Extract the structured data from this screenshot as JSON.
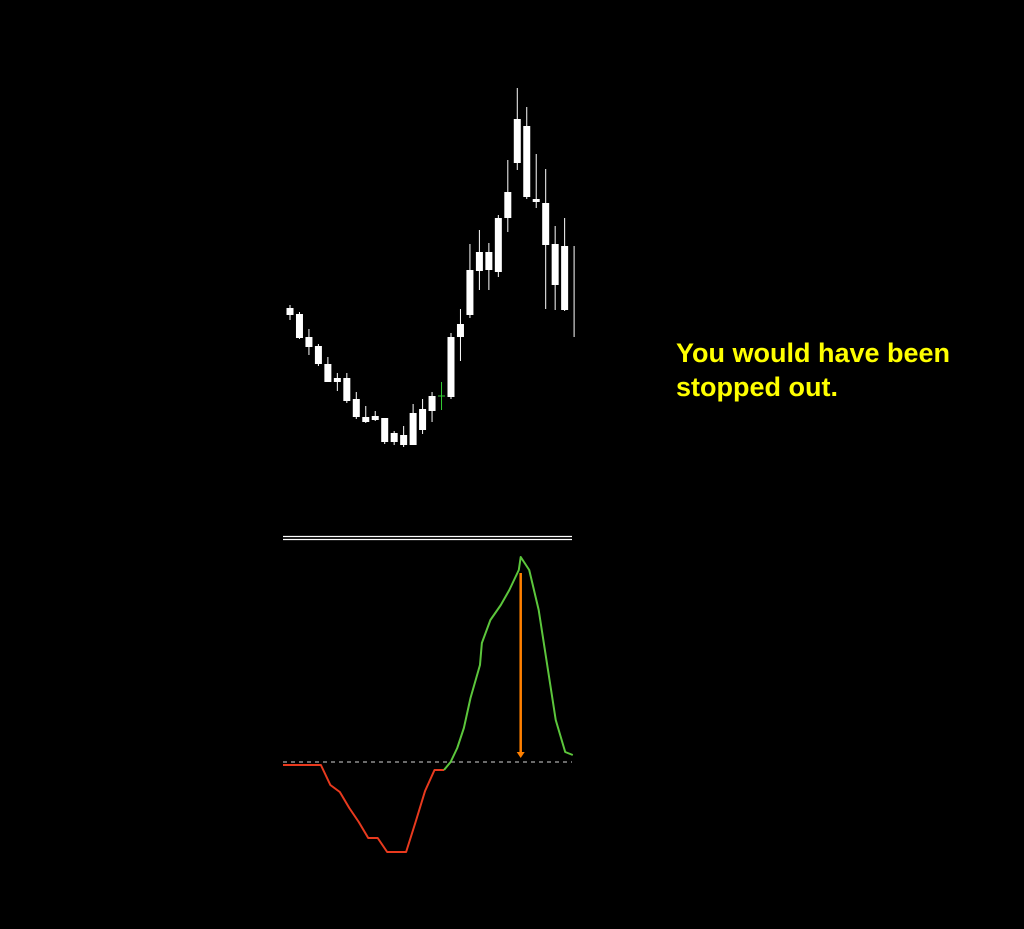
{
  "annotation": {
    "line1": "You would have been",
    "line2": "stopped out."
  },
  "colors": {
    "background": "#000000",
    "candle": "#ffffff",
    "doji": "#33cc33",
    "osc_negative": "#e83a1e",
    "osc_positive": "#5cc63c",
    "arrow": "#ff8000",
    "zero_line": "#aaaaaa",
    "separator": "#ffffff",
    "annotation": "#ffff00"
  },
  "chart_data": [
    {
      "type": "candlestick",
      "title": "",
      "xlabel": "",
      "ylabel": "",
      "grid": false,
      "candles": [
        {
          "high": 695,
          "low": 680,
          "top": 692,
          "bottom": 685
        },
        {
          "high": 688,
          "low": 661,
          "top": 686,
          "bottom": 662
        },
        {
          "high": 671,
          "low": 645,
          "top": 663,
          "bottom": 653
        },
        {
          "high": 656,
          "low": 634,
          "top": 654,
          "bottom": 636
        },
        {
          "high": 643,
          "low": 618,
          "top": 636,
          "bottom": 618
        },
        {
          "high": 627,
          "low": 609,
          "top": 622,
          "bottom": 618
        },
        {
          "high": 627,
          "low": 597,
          "top": 622,
          "bottom": 599
        },
        {
          "high": 608,
          "low": 581,
          "top": 601,
          "bottom": 583
        },
        {
          "high": 594,
          "low": 577,
          "top": 583,
          "bottom": 578
        },
        {
          "high": 589,
          "low": 579,
          "top": 584,
          "bottom": 580
        },
        {
          "high": 582,
          "low": 556,
          "top": 582,
          "bottom": 558
        },
        {
          "high": 569,
          "low": 555,
          "top": 567,
          "bottom": 558
        },
        {
          "high": 574,
          "low": 553,
          "top": 565,
          "bottom": 555
        },
        {
          "high": 596,
          "low": 555,
          "top": 587,
          "bottom": 555
        },
        {
          "high": 601,
          "low": 566,
          "top": 591,
          "bottom": 570
        },
        {
          "high": 608,
          "low": 578,
          "top": 604,
          "bottom": 589
        },
        {
          "high": 618,
          "low": 590,
          "top": 604,
          "bottom": 604,
          "doji": true
        },
        {
          "high": 667,
          "low": 601,
          "top": 663,
          "bottom": 603
        },
        {
          "high": 691,
          "low": 639,
          "top": 676,
          "bottom": 663
        },
        {
          "high": 756,
          "low": 682,
          "top": 730,
          "bottom": 685
        },
        {
          "high": 770,
          "low": 710,
          "top": 748,
          "bottom": 729
        },
        {
          "high": 757,
          "low": 710,
          "top": 748,
          "bottom": 730
        },
        {
          "high": 785,
          "low": 723,
          "top": 782,
          "bottom": 728
        },
        {
          "high": 840,
          "low": 768,
          "top": 808,
          "bottom": 782
        },
        {
          "high": 912,
          "low": 830,
          "top": 881,
          "bottom": 837
        },
        {
          "high": 893,
          "low": 801,
          "top": 874,
          "bottom": 803
        },
        {
          "high": 846,
          "low": 792,
          "top": 801,
          "bottom": 798
        },
        {
          "high": 831,
          "low": 691,
          "top": 797,
          "bottom": 755
        },
        {
          "high": 774,
          "low": 690,
          "top": 756,
          "bottom": 715
        },
        {
          "high": 782,
          "low": 689,
          "top": 754,
          "bottom": 690
        },
        {
          "high": 754,
          "low": 663,
          "top": 754,
          "bottom": 754
        }
      ]
    },
    {
      "type": "line",
      "title": "",
      "xlabel": "",
      "ylabel": "",
      "grid": false,
      "zero_line": 0,
      "series": [
        {
          "color_role": "osc_negative",
          "points": [
            [
              0,
              -3
            ],
            [
              4,
              -3
            ],
            [
              5,
              -23
            ],
            [
              6,
              -30
            ],
            [
              7,
              -46
            ],
            [
              8,
              -60
            ],
            [
              9,
              -76
            ],
            [
              10,
              -76
            ],
            [
              11,
              -90
            ],
            [
              13,
              -90
            ],
            [
              14,
              -60
            ],
            [
              15,
              -29
            ],
            [
              16,
              -8
            ],
            [
              17,
              -8
            ]
          ]
        },
        {
          "color_role": "osc_positive",
          "points": [
            [
              17,
              -8
            ],
            [
              17.7,
              0
            ],
            [
              18.4,
              14
            ],
            [
              19.1,
              34
            ],
            [
              19.8,
              64
            ],
            [
              20.8,
              97
            ],
            [
              21,
              119
            ],
            [
              21.9,
              142
            ],
            [
              23,
              157
            ],
            [
              23.9,
              172
            ],
            [
              24.9,
              192
            ],
            [
              25.1,
              205
            ],
            [
              26,
              192
            ],
            [
              27,
              152
            ],
            [
              27.9,
              97
            ],
            [
              28.8,
              42
            ],
            [
              29.8,
              10
            ],
            [
              30.6,
              7
            ]
          ]
        }
      ],
      "arrow": {
        "x": 25.1,
        "from": 189,
        "to": 4
      }
    }
  ]
}
